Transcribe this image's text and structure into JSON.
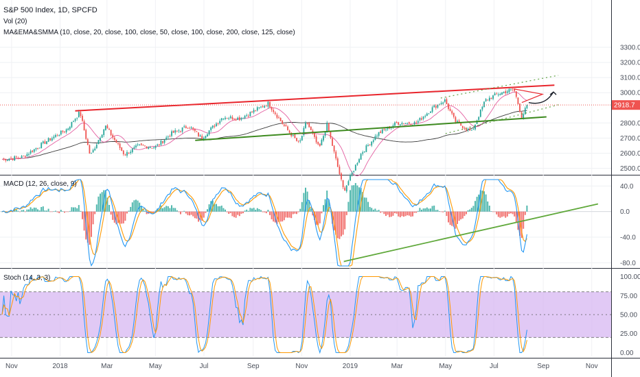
{
  "title": "S&P 500 Index, 1D, SPCFD",
  "indicators": {
    "vol": "Vol (20)",
    "ma": "MA&EMA&SMMA (10, close, 20, close, 100, close, 50, close, 100, close, 200, close, 125, close)",
    "macd": "MACD (12, 26, close, 9)",
    "stoch": "Stoch (14, 3, 3)"
  },
  "colors": {
    "up": "#26a69a",
    "down": "#ef5350",
    "resistance": "#e8242b",
    "support": "#3d8a1f",
    "macd_line": "#2196f3",
    "signal_line": "#ff9800",
    "stoch_band": "#d7b7f2",
    "ma_dark": "#3a3a3a",
    "ma_pink": "#e35ea0",
    "price_tag": "#ef5350"
  },
  "chart_data": [
    {
      "type": "line",
      "panel": "price",
      "title": "S&P 500 Index, 1D, SPCFD",
      "x_ticks": [
        "Nov",
        "2018",
        "Mar",
        "May",
        "Jul",
        "Sep",
        "Nov",
        "2019",
        "Mar",
        "May",
        "Jul",
        "Sep",
        "Nov"
      ],
      "y_ticks": [
        "3300.0",
        "3200.0",
        "3100.0",
        "3000.0",
        "2918.7",
        "2800.0",
        "2700.0",
        "2600.0",
        "2500.0"
      ],
      "ylim": [
        2480,
        3350
      ],
      "last_price": "2918.7",
      "series": [
        {
          "name": "S&P 500",
          "x": [
            "2017-10-20",
            "2017-11-15",
            "2017-12-15",
            "2018-01-10",
            "2018-01-26",
            "2018-02-08",
            "2018-02-27",
            "2018-03-23",
            "2018-04-10",
            "2018-05-01",
            "2018-05-21",
            "2018-06-12",
            "2018-06-28",
            "2018-07-25",
            "2018-08-15",
            "2018-09-20",
            "2018-10-10",
            "2018-10-29",
            "2018-11-07",
            "2018-11-23",
            "2018-12-03",
            "2018-12-24",
            "2019-01-15",
            "2019-02-05",
            "2019-03-01",
            "2019-03-25",
            "2019-04-15",
            "2019-04-30",
            "2019-05-13",
            "2019-06-03",
            "2019-06-20",
            "2019-07-05",
            "2019-07-26",
            "2019-08-05",
            "2019-08-12"
          ],
          "values": [
            2560,
            2575,
            2680,
            2760,
            2872,
            2580,
            2780,
            2590,
            2650,
            2640,
            2730,
            2780,
            2700,
            2840,
            2830,
            2930,
            2780,
            2660,
            2810,
            2630,
            2790,
            2350,
            2600,
            2730,
            2800,
            2800,
            2900,
            2950,
            2810,
            2740,
            2950,
            2990,
            3025,
            2840,
            2918
          ]
        }
      ],
      "annotations": [
        {
          "type": "resistance-trendline",
          "from": [
            "2018-01-20",
            2880
          ],
          "to": [
            "2019-09-15",
            3050
          ]
        },
        {
          "type": "support-trendline",
          "from": [
            "2018-06-20",
            2685
          ],
          "to": [
            "2019-09-05",
            2840
          ]
        },
        {
          "type": "channel-upper",
          "from": [
            "2019-04-25",
            2965
          ],
          "to": [
            "2019-09-20",
            3115
          ]
        },
        {
          "type": "channel-lower",
          "from": [
            "2019-05-01",
            2730
          ],
          "to": [
            "2019-09-20",
            2920
          ]
        },
        {
          "type": "arrow",
          "note": "projection up from Aug 2019 low"
        }
      ]
    },
    {
      "type": "line",
      "panel": "macd",
      "title": "MACD (12, 26, close, 9)",
      "y_ticks": [
        "40.0",
        "0.0",
        "-40.0",
        "-80.0"
      ],
      "ylim": [
        -85,
        50
      ],
      "annotations": [
        {
          "type": "support-trendline",
          "from": [
            "2018-12-24",
            -78
          ],
          "to": [
            "2019-10-01",
            12
          ]
        }
      ]
    },
    {
      "type": "line",
      "panel": "stoch",
      "title": "Stoch (14, 3, 3)",
      "y_ticks": [
        "100.00",
        "75.00",
        "50.00",
        "25.00",
        "0.00"
      ],
      "ylim": [
        -5,
        105
      ],
      "bands": [
        20,
        80
      ]
    }
  ]
}
